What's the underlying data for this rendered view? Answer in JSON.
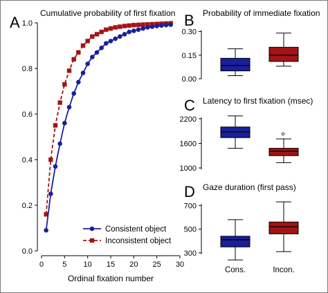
{
  "colors": {
    "consistent": "#1a1f9a",
    "inconsistent": "#a31414",
    "axis": "#000000",
    "frame": "#7a7a7a"
  },
  "chart_data": [
    {
      "panel_letter": "A",
      "type": "line",
      "title": "Cumulative probability of first fixation",
      "xlabel": "Ordinal fixation number",
      "ylabel": "",
      "xlim": [
        0,
        30
      ],
      "ylim": [
        0,
        1
      ],
      "xticks": [
        0,
        5,
        10,
        15,
        20,
        25,
        30
      ],
      "yticks": [
        0.0,
        0.2,
        0.4,
        0.6,
        0.8,
        1.0
      ],
      "ytick_labels": [
        "0.0",
        "0.2",
        "0.4",
        "0.6",
        "0.8",
        "1.0"
      ],
      "grid": false,
      "legend_position": "bottom-right",
      "x": [
        1,
        2,
        3,
        4,
        5,
        6,
        7,
        8,
        9,
        10,
        11,
        12,
        13,
        14,
        15,
        16,
        17,
        18,
        19,
        20,
        21,
        22,
        23,
        24,
        25,
        26,
        27,
        28
      ],
      "series": [
        {
          "name": "Consistent object",
          "style": "solid",
          "marker": "circle",
          "values": [
            0.09,
            0.25,
            0.37,
            0.47,
            0.56,
            0.63,
            0.69,
            0.74,
            0.78,
            0.82,
            0.85,
            0.87,
            0.89,
            0.91,
            0.92,
            0.93,
            0.94,
            0.95,
            0.96,
            0.965,
            0.97,
            0.975,
            0.98,
            0.983,
            0.986,
            0.988,
            0.99,
            0.992
          ]
        },
        {
          "name": "Inconsistent object",
          "style": "dashed",
          "marker": "square",
          "values": [
            0.16,
            0.4,
            0.55,
            0.65,
            0.73,
            0.79,
            0.84,
            0.87,
            0.9,
            0.92,
            0.94,
            0.95,
            0.96,
            0.97,
            0.975,
            0.98,
            0.983,
            0.986,
            0.988,
            0.99,
            0.991,
            0.992,
            0.993,
            0.994,
            0.995,
            0.996,
            0.997,
            0.998
          ]
        }
      ]
    },
    {
      "panel_letter": "B",
      "type": "box",
      "title": "Probability of immediate fixation",
      "ylim": [
        0,
        0.32
      ],
      "yticks": [
        0.0,
        0.15,
        0.3
      ],
      "ytick_labels": [
        "0.00",
        "0.15",
        "0.30"
      ],
      "categories": [
        "Cons.",
        "Incon."
      ],
      "boxes": [
        {
          "whisker_low": 0.02,
          "q1": 0.05,
          "median": 0.085,
          "q3": 0.13,
          "whisker_high": 0.19,
          "outliers": []
        },
        {
          "whisker_low": 0.08,
          "q1": 0.11,
          "median": 0.15,
          "q3": 0.2,
          "whisker_high": 0.29,
          "outliers": []
        }
      ]
    },
    {
      "panel_letter": "C",
      "type": "box",
      "title": "Latency to first fixation (msec)",
      "ylim": [
        950,
        2350
      ],
      "yticks": [
        1000,
        1600,
        2200
      ],
      "ytick_labels": [
        "1000",
        "1600",
        "2200"
      ],
      "categories": [
        "Cons.",
        "Incon."
      ],
      "boxes": [
        {
          "whisker_low": 1480,
          "q1": 1740,
          "median": 1880,
          "q3": 2000,
          "whisker_high": 2270,
          "outliers": []
        },
        {
          "whisker_low": 1130,
          "q1": 1300,
          "median": 1410,
          "q3": 1480,
          "whisker_high": 1710,
          "outliers": [
            1830
          ]
        }
      ]
    },
    {
      "panel_letter": "D",
      "type": "box",
      "title": "Gaze duration (first pass)",
      "ylim": [
        270,
        760
      ],
      "yticks": [
        300,
        500,
        700
      ],
      "ytick_labels": [
        "300",
        "500",
        "700"
      ],
      "categories": [
        "Cons.",
        "Incon."
      ],
      "boxes": [
        {
          "whisker_low": 240,
          "q1": 350,
          "median": 410,
          "q3": 440,
          "whisker_high": 580,
          "outliers": []
        },
        {
          "whisker_low": 310,
          "q1": 460,
          "median": 520,
          "q3": 560,
          "whisker_high": 730,
          "outliers": []
        }
      ]
    }
  ]
}
